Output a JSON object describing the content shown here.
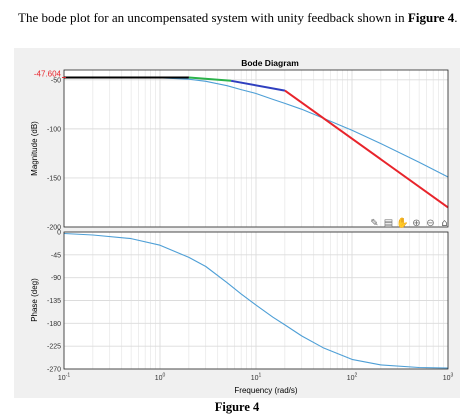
{
  "prompt": {
    "text_before": "The bode plot for an uncompensated system with unity feedback shown in ",
    "figure_ref": "Figure 4",
    "text_after": "."
  },
  "caption": "Figure 4",
  "colors": {
    "axes_bg": "#ffffff",
    "figure_bg": "#f0f0f0",
    "grid": "#dcdcdc",
    "curve": "#4e9fd6",
    "asymptote_black": "#000000",
    "asymptote_green": "#2bb24a",
    "asymptote_blue": "#2f3fbf",
    "asymptote_red": "#e8242b",
    "annotation": "#e8242b"
  },
  "toolbar": {
    "icons": [
      "brush-icon",
      "export-icon",
      "pan-hand-icon",
      "zoom-in-icon",
      "zoom-out-icon",
      "home-icon"
    ]
  },
  "chart_data": [
    {
      "type": "line",
      "title": "Bode Diagram",
      "ylabel": "Magnitude (dB)",
      "xlabel": "",
      "xscale": "log",
      "xlim": [
        0.1,
        1000
      ],
      "ylim": [
        -200,
        -40
      ],
      "yticks": [
        -50,
        -100,
        -150,
        -200
      ],
      "ytick_labels": [
        "-50",
        "-100",
        "-150",
        "-200"
      ],
      "grid": true,
      "annotation": "-47.604",
      "annotation_value": -47.604,
      "series": [
        {
          "role": "curve",
          "x": [
            0.1,
            0.5,
            1,
            2,
            3,
            5,
            7,
            10,
            15,
            20,
            30,
            50,
            100,
            200,
            500,
            1000
          ],
          "y": [
            -47.6,
            -47.7,
            -48,
            -49.4,
            -51.5,
            -56,
            -60,
            -64,
            -70,
            -74,
            -80,
            -89,
            -101.5,
            -115,
            -134,
            -149
          ]
        },
        {
          "role": "asymptote-black",
          "x": [
            0.1,
            2
          ],
          "y": [
            -47.6,
            -47.6
          ]
        },
        {
          "role": "asymptote-green",
          "x": [
            2,
            5.5
          ],
          "y": [
            -47.6,
            -51
          ]
        },
        {
          "role": "asymptote-blue",
          "x": [
            5.5,
            20
          ],
          "y": [
            -51,
            -61
          ]
        },
        {
          "role": "asymptote-red",
          "x": [
            20,
            1000
          ],
          "y": [
            -61,
            -180
          ]
        }
      ]
    },
    {
      "type": "line",
      "title": "",
      "ylabel": "Phase (deg)",
      "xlabel": "Frequency  (rad/s)",
      "xscale": "log",
      "xlim": [
        0.1,
        1000
      ],
      "ylim": [
        -270,
        0
      ],
      "yticks": [
        0,
        -45,
        -90,
        -135,
        -180,
        -225,
        -270
      ],
      "ytick_labels": [
        "0",
        "-45",
        "-90",
        "-135",
        "-180",
        "-225",
        "-270"
      ],
      "xticks": [
        0.1,
        1,
        10,
        100,
        1000
      ],
      "xtick_labels": [
        {
          "base": "10",
          "exp": "-1"
        },
        {
          "base": "10",
          "exp": "0"
        },
        {
          "base": "10",
          "exp": "1"
        },
        {
          "base": "10",
          "exp": "2"
        },
        {
          "base": "10",
          "exp": "3"
        }
      ],
      "grid": true,
      "series": [
        {
          "role": "curve",
          "x": [
            0.1,
            0.2,
            0.5,
            1,
            2,
            3,
            5,
            7,
            10,
            15,
            20,
            30,
            50,
            100,
            200,
            500,
            1000
          ],
          "y": [
            -3,
            -6,
            -13,
            -26,
            -50,
            -68,
            -100,
            -122,
            -144,
            -168,
            -183,
            -205,
            -228,
            -251,
            -262,
            -267,
            -268
          ]
        }
      ]
    }
  ]
}
